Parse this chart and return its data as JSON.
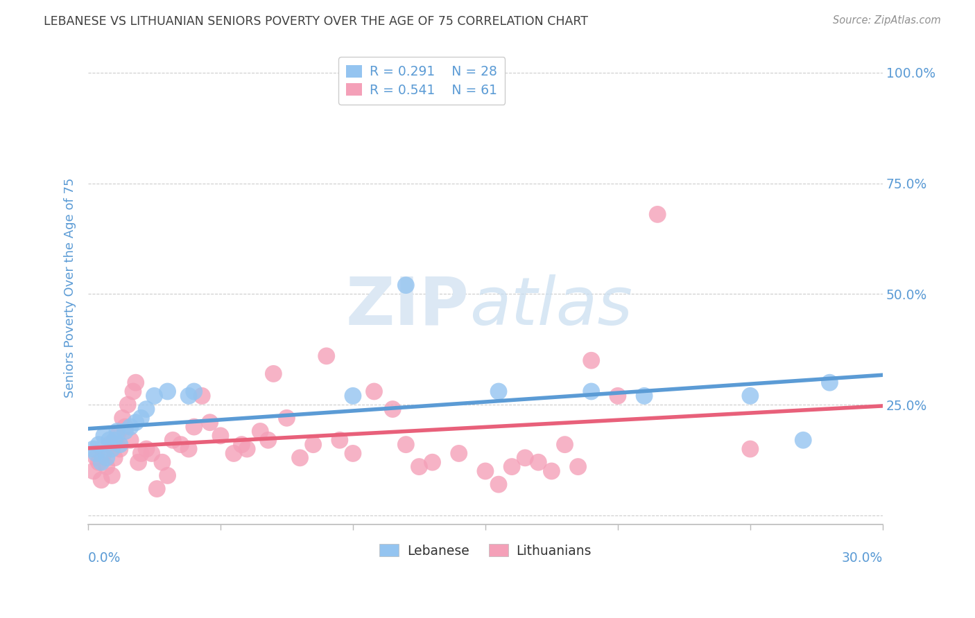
{
  "title": "LEBANESE VS LITHUANIAN SENIORS POVERTY OVER THE AGE OF 75 CORRELATION CHART",
  "source": "Source: ZipAtlas.com",
  "ylabel": "Seniors Poverty Over the Age of 75",
  "xlim": [
    0.0,
    0.3
  ],
  "ylim": [
    -0.02,
    1.05
  ],
  "ytick_vals": [
    0.0,
    0.25,
    0.5,
    0.75,
    1.0
  ],
  "ytick_labels": [
    "",
    "25.0%",
    "50.0%",
    "75.0%",
    "100.0%"
  ],
  "legend_r1": "R = 0.291",
  "legend_n1": "N = 28",
  "legend_r2": "R = 0.541",
  "legend_n2": "N = 61",
  "color_lebanese": "#94C4F0",
  "color_lithuanian": "#F4A0B8",
  "color_lebanese_line": "#5B9BD5",
  "color_lithuanian_line": "#E8607A",
  "color_axis_blue": "#5B9BD5",
  "color_title": "#404040",
  "color_source": "#909090",
  "lebanese_x": [
    0.002,
    0.003,
    0.004,
    0.005,
    0.006,
    0.007,
    0.008,
    0.009,
    0.01,
    0.011,
    0.012,
    0.014,
    0.016,
    0.018,
    0.02,
    0.022,
    0.025,
    0.03,
    0.038,
    0.04,
    0.1,
    0.12,
    0.155,
    0.19,
    0.21,
    0.25,
    0.27,
    0.28
  ],
  "lebanese_y": [
    0.15,
    0.14,
    0.16,
    0.12,
    0.18,
    0.13,
    0.17,
    0.15,
    0.17,
    0.19,
    0.16,
    0.19,
    0.2,
    0.21,
    0.22,
    0.24,
    0.27,
    0.28,
    0.27,
    0.28,
    0.27,
    0.52,
    0.28,
    0.28,
    0.27,
    0.27,
    0.17,
    0.3
  ],
  "lithuanian_x": [
    0.002,
    0.003,
    0.004,
    0.005,
    0.006,
    0.007,
    0.008,
    0.009,
    0.01,
    0.011,
    0.012,
    0.013,
    0.014,
    0.015,
    0.016,
    0.017,
    0.018,
    0.019,
    0.02,
    0.022,
    0.024,
    0.026,
    0.028,
    0.03,
    0.032,
    0.035,
    0.038,
    0.04,
    0.043,
    0.046,
    0.05,
    0.055,
    0.058,
    0.06,
    0.065,
    0.068,
    0.07,
    0.075,
    0.08,
    0.085,
    0.09,
    0.095,
    0.1,
    0.108,
    0.115,
    0.12,
    0.125,
    0.13,
    0.14,
    0.15,
    0.155,
    0.16,
    0.165,
    0.17,
    0.175,
    0.18,
    0.185,
    0.19,
    0.2,
    0.215,
    0.25
  ],
  "lithuanian_y": [
    0.1,
    0.13,
    0.12,
    0.08,
    0.14,
    0.11,
    0.16,
    0.09,
    0.13,
    0.18,
    0.15,
    0.22,
    0.2,
    0.25,
    0.17,
    0.28,
    0.3,
    0.12,
    0.14,
    0.15,
    0.14,
    0.06,
    0.12,
    0.09,
    0.17,
    0.16,
    0.15,
    0.2,
    0.27,
    0.21,
    0.18,
    0.14,
    0.16,
    0.15,
    0.19,
    0.17,
    0.32,
    0.22,
    0.13,
    0.16,
    0.36,
    0.17,
    0.14,
    0.28,
    0.24,
    0.16,
    0.11,
    0.12,
    0.14,
    0.1,
    0.07,
    0.11,
    0.13,
    0.12,
    0.1,
    0.16,
    0.11,
    0.35,
    0.27,
    0.68,
    0.15
  ]
}
